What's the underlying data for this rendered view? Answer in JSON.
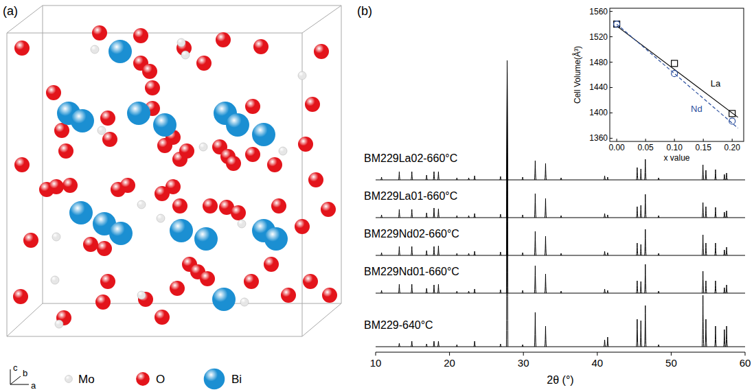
{
  "structure": {
    "panel_label": "(a)",
    "axes": [
      "c",
      "b",
      "a"
    ],
    "atoms": [
      {
        "label": "Mo",
        "color": "#e6e6e6"
      },
      {
        "label": "O",
        "color": "#e3141b"
      },
      {
        "label": "Bi",
        "color": "#1b8fd2"
      }
    ]
  },
  "chart_data": [
    {
      "type": "stick",
      "panel_label": "(b)",
      "xlabel": "2θ (°)",
      "xlim": [
        10,
        60
      ],
      "xticks": [
        10,
        20,
        30,
        40,
        50,
        60
      ],
      "ylim": [
        0,
        433
      ],
      "tick_labels": "x",
      "series": [
        {
          "name": "BM229La02-660°C",
          "color": "#000000",
          "baseline": 251,
          "x": [
            10.8,
            13.2,
            14.9,
            16.9,
            17.9,
            18.5,
            21.0,
            22.6,
            23.4,
            26.9,
            27.8,
            29.9,
            31.6,
            33.0,
            35.1,
            41.0,
            41.4,
            45.4,
            45.9,
            46.5,
            48.3,
            54.3,
            54.7,
            56.0,
            57.2,
            57.5
          ],
          "values": [
            255,
            263,
            263,
            258,
            263,
            263,
            254,
            254,
            257,
            256,
            425,
            255,
            279,
            275,
            254,
            257,
            255,
            269,
            267,
            281,
            254,
            273,
            265,
            266,
            259,
            261
          ]
        },
        {
          "name": "BM229La01-660°C",
          "color": "#000000",
          "baseline": 196,
          "x": [
            10.8,
            13.2,
            14.9,
            16.9,
            17.9,
            18.5,
            21.0,
            22.6,
            23.4,
            26.9,
            27.8,
            29.9,
            31.6,
            33.0,
            35.1,
            41.0,
            41.4,
            45.4,
            45.9,
            46.5,
            48.3,
            54.3,
            54.7,
            56.0,
            57.2,
            57.5
          ],
          "values": [
            200,
            208,
            208,
            203,
            210,
            209,
            199,
            199,
            202,
            201,
            416,
            200,
            231,
            224,
            199,
            202,
            200,
            212,
            214,
            230,
            199,
            218,
            212,
            211,
            204,
            206
          ]
        },
        {
          "name": "BM229Nd02-660°C",
          "color": "#000000",
          "baseline": 141,
          "x": [
            10.8,
            13.2,
            14.9,
            16.9,
            17.9,
            18.5,
            21.0,
            22.6,
            23.4,
            26.9,
            27.8,
            29.9,
            31.6,
            33.0,
            35.1,
            41.0,
            41.4,
            45.4,
            45.9,
            46.5,
            48.3,
            54.3,
            54.7,
            56.0,
            57.2,
            57.5
          ],
          "values": [
            145,
            154,
            154,
            148,
            154,
            155,
            144,
            144,
            147,
            146,
            411,
            145,
            176,
            169,
            144,
            147,
            145,
            159,
            157,
            179,
            144,
            171,
            159,
            159,
            149,
            153
          ]
        },
        {
          "name": "BM229Nd01-660°C",
          "color": "#000000",
          "baseline": 86,
          "x": [
            10.8,
            13.2,
            14.9,
            16.9,
            17.9,
            18.5,
            21.0,
            22.6,
            23.4,
            26.9,
            27.8,
            29.9,
            31.6,
            33.0,
            35.1,
            41.0,
            41.4,
            45.4,
            45.9,
            46.5,
            48.3,
            54.3,
            54.7,
            56.0,
            57.2,
            57.5
          ],
          "values": [
            90,
            99,
            99,
            93,
            98,
            99,
            89,
            89,
            92,
            91,
            406,
            90,
            126,
            114,
            89,
            92,
            90,
            104,
            103,
            128,
            89,
            118,
            104,
            104,
            94,
            98
          ]
        },
        {
          "name": "BM229-640°C",
          "color": "#000000",
          "baseline": 8,
          "x": [
            13.2,
            14.9,
            16.9,
            17.9,
            18.5,
            21.0,
            23.4,
            26.9,
            27.8,
            29.9,
            31.6,
            33.0,
            41.0,
            41.4,
            45.4,
            45.9,
            46.5,
            48.3,
            54.3,
            54.7,
            56.0,
            57.2,
            57.5
          ],
          "values": [
            13,
            16,
            12,
            16,
            16,
            11,
            16,
            12,
            408,
            11,
            58,
            38,
            18,
            22,
            48,
            46,
            68,
            11,
            83,
            48,
            38,
            33,
            38
          ]
        }
      ]
    },
    {
      "type": "scatter",
      "xlabel": "x value",
      "ylabel": "Cell Volume(Å³)",
      "xlim": [
        -0.012,
        0.22
      ],
      "xticks": [
        {
          "value": 0,
          "label": "0.00"
        },
        {
          "value": 0.05,
          "label": "0.05"
        },
        {
          "value": 0.1,
          "label": "0.10"
        },
        {
          "value": 0.15,
          "label": "0.15"
        },
        {
          "value": 0.2,
          "label": "0.20"
        }
      ],
      "ylim": [
        1355,
        1565
      ],
      "yticks": [
        1360,
        1400,
        1440,
        1480,
        1520,
        1560
      ],
      "series": [
        {
          "name": "La",
          "color": "#000000",
          "marker": "square",
          "line_style": "solid",
          "x": [
            0,
            0.1,
            0.2
          ],
          "values": [
            1540,
            1478,
            1399
          ],
          "fit": {
            "x": [
              0,
              0.21
            ],
            "values": [
              1537,
              1393
            ]
          }
        },
        {
          "name": "Nd",
          "color": "#2b4f9e",
          "marker": "circle",
          "line_style": "dashed",
          "x": [
            0,
            0.1,
            0.2
          ],
          "values": [
            1540,
            1462,
            1387
          ],
          "fit": {
            "x": [
              0,
              0.21
            ],
            "values": [
              1540,
              1376
            ]
          }
        }
      ]
    }
  ]
}
